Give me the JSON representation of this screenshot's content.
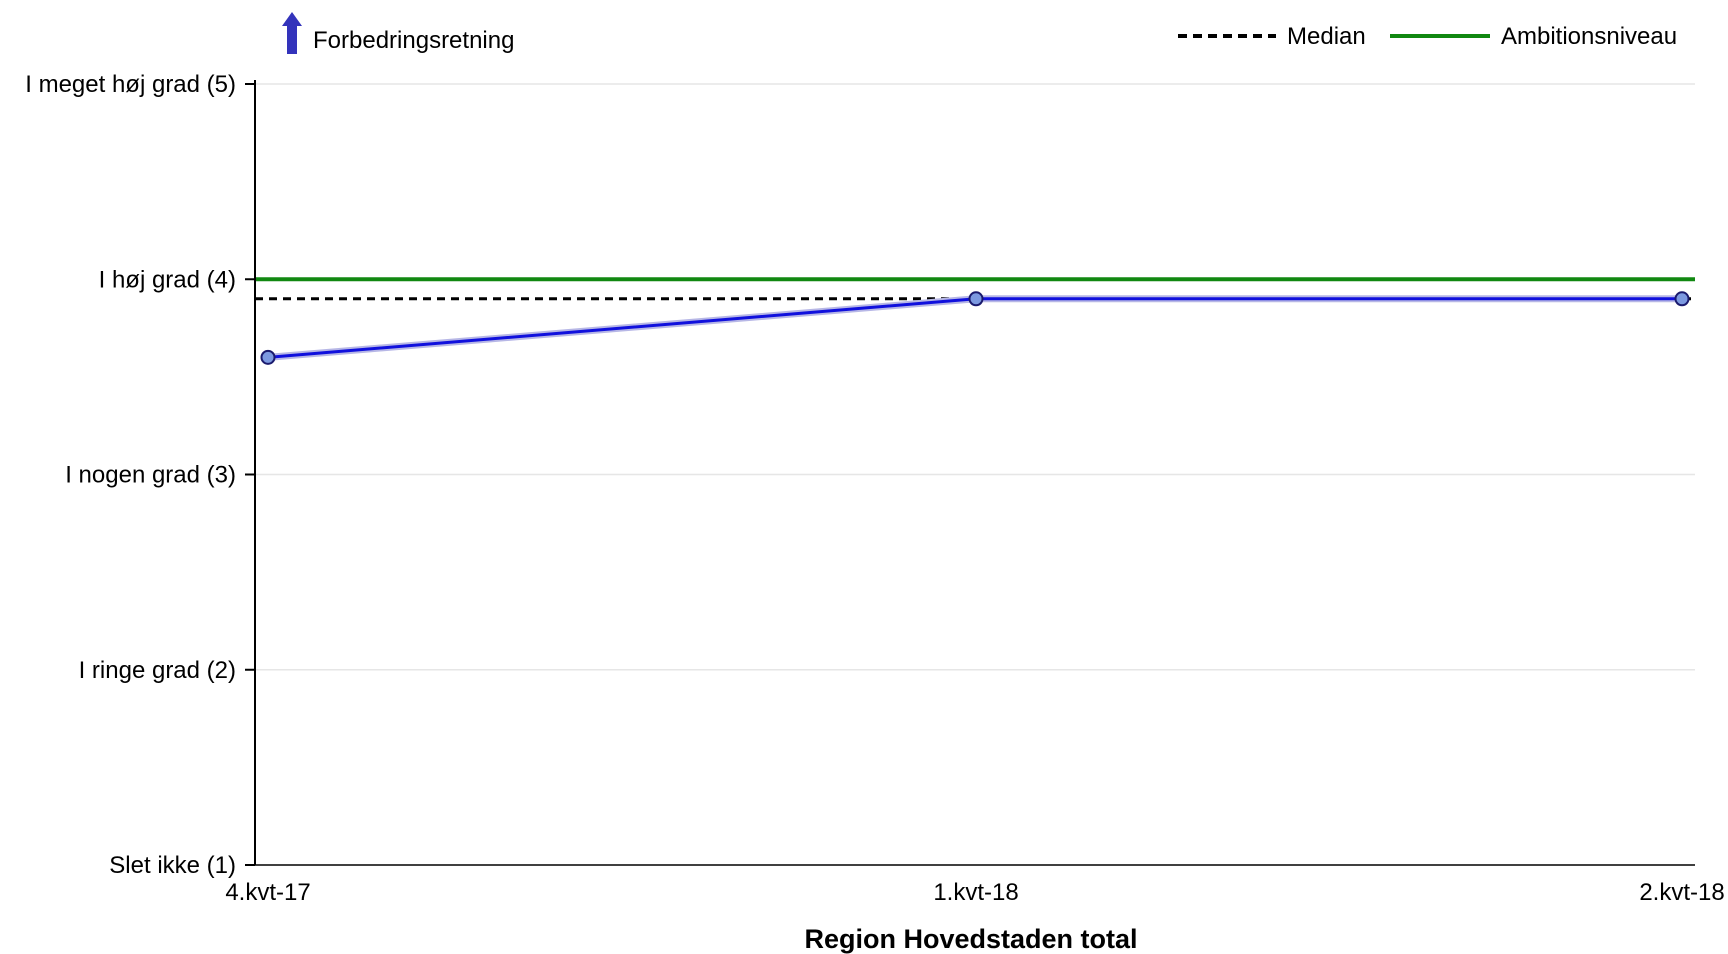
{
  "chart_data": {
    "type": "line",
    "categories": [
      "4.kvt-17",
      "1.kvt-18",
      "2.kvt-18"
    ],
    "series": [
      {
        "values": [
          3.6,
          3.9,
          3.9
        ],
        "color": "#1010dd"
      }
    ],
    "median": {
      "label": "Median",
      "value": 3.9,
      "color": "#000000"
    },
    "ambition": {
      "label": "Ambitionsniveau",
      "value": 4.0,
      "color": "#118811"
    },
    "improvement_direction": {
      "label": "Forbedringsretning",
      "direction": "up",
      "color": "#3333bb"
    },
    "y_ticks": [
      {
        "value": 5,
        "label": "I meget høj grad (5)"
      },
      {
        "value": 4,
        "label": "I høj grad (4)"
      },
      {
        "value": 3,
        "label": "I nogen grad (3)"
      },
      {
        "value": 2,
        "label": "I ringe grad (2)"
      },
      {
        "value": 1,
        "label": "Slet ikke (1)"
      }
    ],
    "ylim": [
      1,
      5
    ],
    "xlabel": "Region Hovedstaden total",
    "ylabel": "",
    "title": "",
    "grid": true,
    "legend_position": "top-right"
  }
}
